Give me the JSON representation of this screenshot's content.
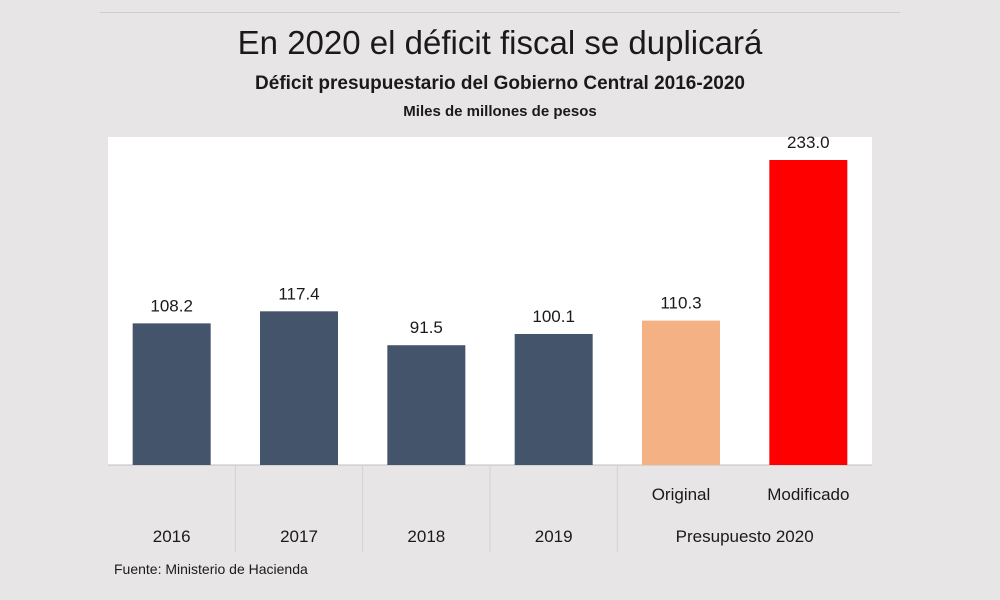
{
  "title": "En 2020 el déficit fiscal se duplicará",
  "subtitle": "Déficit presupuestario del Gobierno Central 2016-2020",
  "units": "Miles de millones de pesos",
  "source": "Fuente: Ministerio de Hacienda",
  "colors": {
    "page_background": "#e8e5e6",
    "plot_background": "#ffffff",
    "historical": "#44546a",
    "original": "#f4b183",
    "modificado": "#ff0000",
    "axis_panel": "#e8e5e6"
  },
  "chart_data": {
    "type": "bar",
    "title": "Déficit presupuestario del Gobierno Central 2016-2020",
    "ylabel": "",
    "xlabel": "",
    "ylim": [
      0,
      250
    ],
    "grid": false,
    "bars": [
      {
        "label": "2016",
        "value": 108.2,
        "value_label": "108.2",
        "group": "",
        "color": "#44546a"
      },
      {
        "label": "2017",
        "value": 117.4,
        "value_label": "117.4",
        "group": "",
        "color": "#44546a"
      },
      {
        "label": "2018",
        "value": 91.5,
        "value_label": "91.5",
        "group": "",
        "color": "#44546a"
      },
      {
        "label": "2019",
        "value": 100.1,
        "value_label": "100.1",
        "group": "",
        "color": "#44546a"
      },
      {
        "label": "Original",
        "value": 110.3,
        "value_label": "110.3",
        "group": "Presupuesto 2020",
        "color": "#f4b183"
      },
      {
        "label": "Modificado",
        "value": 233.0,
        "value_label": "233.0",
        "group": "Presupuesto 2020",
        "color": "#ff0000"
      }
    ],
    "group_label": "Presupuesto 2020"
  }
}
